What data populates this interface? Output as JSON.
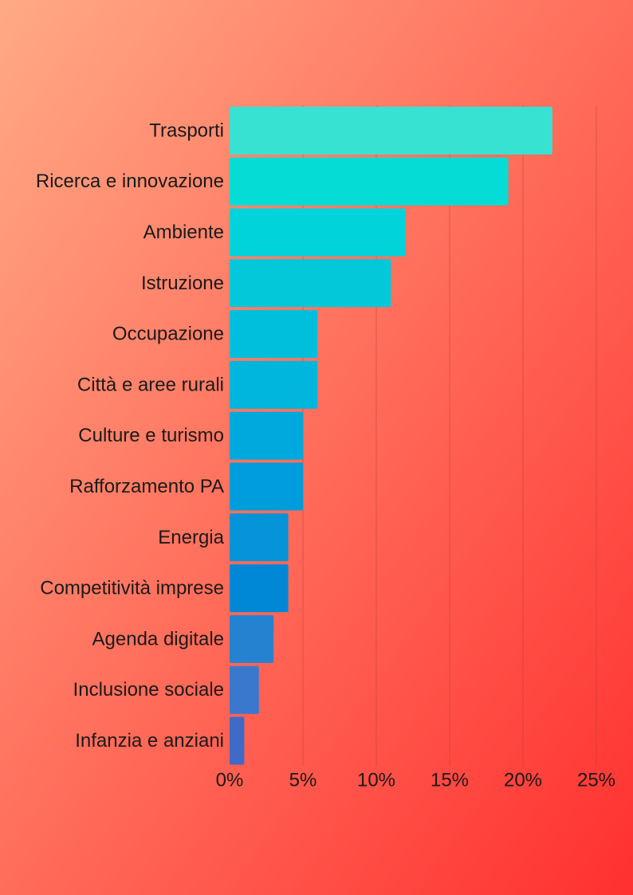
{
  "background": {
    "gradient_start": "#ffa985",
    "gradient_end": "#ff3030"
  },
  "chart_data": {
    "type": "bar",
    "orientation": "horizontal",
    "title": "",
    "xlabel": "",
    "ylabel": "",
    "categories": [
      "Trasporti",
      "Ricerca e innovazione",
      "Ambiente",
      "Istruzione",
      "Occupazione ",
      "Città e aree rurali",
      "Culture e turismo",
      "Rafforzamento PA",
      "Energia",
      "Competitività imprese",
      "Agenda digitale",
      "Inclusione sociale",
      "Infanzia e anziani"
    ],
    "values": [
      22,
      19,
      12,
      11,
      6,
      6,
      5,
      5,
      4,
      4,
      3,
      2,
      1
    ],
    "value_unit": "%",
    "xlim": [
      0,
      25
    ],
    "x_ticks": [
      0,
      5,
      10,
      15,
      20,
      25
    ],
    "x_tick_labels": [
      "0%",
      "5%",
      "10%",
      "15%",
      "20%",
      "25%"
    ],
    "grid": "vertical",
    "legend": "none",
    "bar_colors": [
      "#38e2d3",
      "#06dcd6",
      "#00d3da",
      "#02c8da",
      "#00bfdd",
      "#00b6dc",
      "#00a9dd",
      "#009ddc",
      "#0594d8",
      "#0088d6",
      "#2582d0",
      "#3a78cd",
      "#3f6ac6"
    ]
  }
}
